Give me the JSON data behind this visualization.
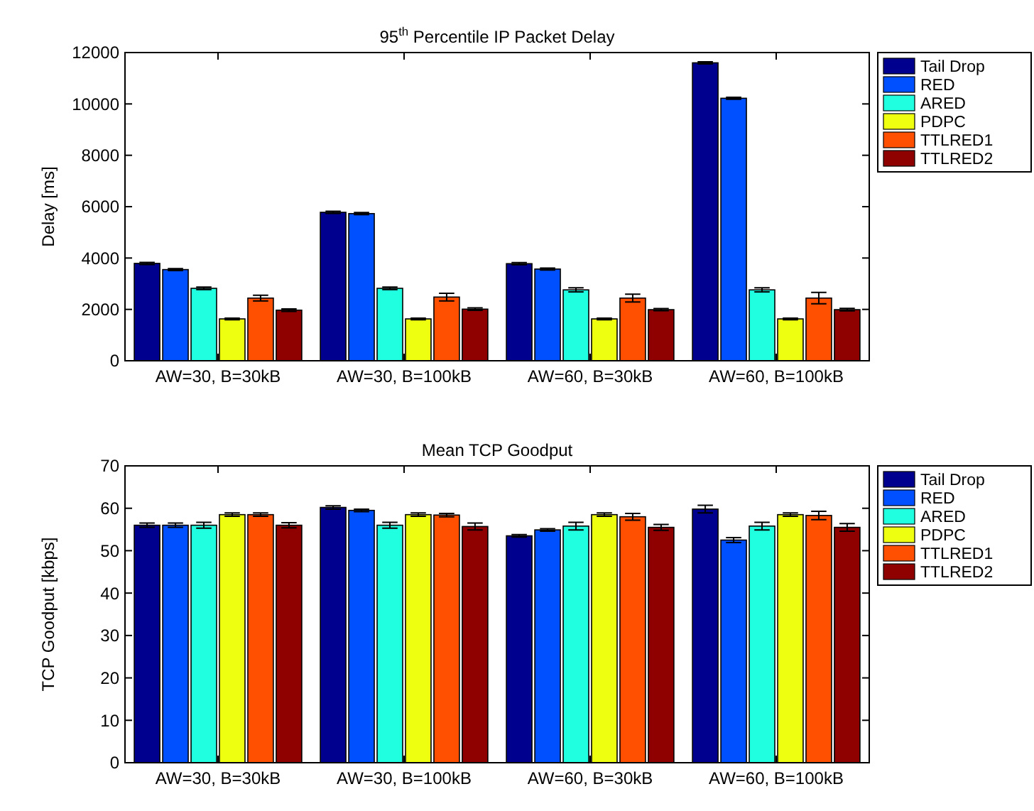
{
  "chart_data": [
    {
      "type": "bar",
      "title": "95$^{th}$ Percentile IP Packet Delay",
      "ylabel": "Delay [ms]",
      "categories": [
        "AW=30, B=30kB",
        "AW=30, B=100kB",
        "AW=60, B=30kB",
        "AW=60, B=100kB"
      ],
      "ylim": [
        0,
        12000
      ],
      "yticks": [
        0,
        2000,
        4000,
        6000,
        8000,
        10000,
        12000
      ],
      "legend": "top right",
      "grid": false,
      "series": [
        {
          "name": "Tail Drop",
          "color": "#00008f",
          "values": [
            3790,
            5780,
            3780,
            11600
          ],
          "errors": [
            40,
            40,
            40,
            40
          ]
        },
        {
          "name": "RED",
          "color": "#0050ff",
          "values": [
            3550,
            5730,
            3570,
            10220
          ],
          "errors": [
            40,
            40,
            40,
            40
          ]
        },
        {
          "name": "ARED",
          "color": "#20ffdf",
          "values": [
            2820,
            2820,
            2760,
            2760
          ],
          "errors": [
            50,
            50,
            80,
            80
          ]
        },
        {
          "name": "PDPC",
          "color": "#efff10",
          "values": [
            1630,
            1630,
            1630,
            1630
          ],
          "errors": [
            30,
            30,
            30,
            30
          ]
        },
        {
          "name": "TTLRED1",
          "color": "#ff4f00",
          "values": [
            2440,
            2480,
            2440,
            2440
          ],
          "errors": [
            110,
            150,
            150,
            220
          ]
        },
        {
          "name": "TTLRED2",
          "color": "#8f0000",
          "values": [
            1970,
            2010,
            1990,
            1990
          ],
          "errors": [
            50,
            50,
            40,
            50
          ]
        }
      ]
    },
    {
      "type": "bar",
      "title": "Mean TCP Goodput",
      "ylabel": "TCP Goodput [kbps]",
      "categories": [
        "AW=30, B=30kB",
        "AW=30, B=100kB",
        "AW=60, B=30kB",
        "AW=60, B=100kB"
      ],
      "ylim": [
        0,
        70
      ],
      "yticks": [
        0,
        10,
        20,
        30,
        40,
        50,
        60,
        70
      ],
      "legend": "top right",
      "grid": false,
      "series": [
        {
          "name": "Tail Drop",
          "color": "#00008f",
          "values": [
            56.0,
            60.2,
            53.5,
            59.8
          ],
          "errors": [
            0.5,
            0.4,
            0.3,
            0.9
          ]
        },
        {
          "name": "RED",
          "color": "#0050ff",
          "values": [
            56.0,
            59.5,
            54.9,
            52.5
          ],
          "errors": [
            0.5,
            0.3,
            0.3,
            0.6
          ]
        },
        {
          "name": "ARED",
          "color": "#20ffdf",
          "values": [
            56.0,
            56.0,
            55.8,
            55.8
          ],
          "errors": [
            0.7,
            0.7,
            0.9,
            0.9
          ]
        },
        {
          "name": "PDPC",
          "color": "#efff10",
          "values": [
            58.5,
            58.5,
            58.5,
            58.5
          ],
          "errors": [
            0.4,
            0.4,
            0.4,
            0.4
          ]
        },
        {
          "name": "TTLRED1",
          "color": "#ff4f00",
          "values": [
            58.5,
            58.4,
            58.0,
            58.3
          ],
          "errors": [
            0.4,
            0.4,
            0.8,
            1.0
          ]
        },
        {
          "name": "TTLRED2",
          "color": "#8f0000",
          "values": [
            56.0,
            55.7,
            55.5,
            55.5
          ],
          "errors": [
            0.6,
            0.8,
            0.7,
            0.9
          ]
        }
      ]
    }
  ]
}
